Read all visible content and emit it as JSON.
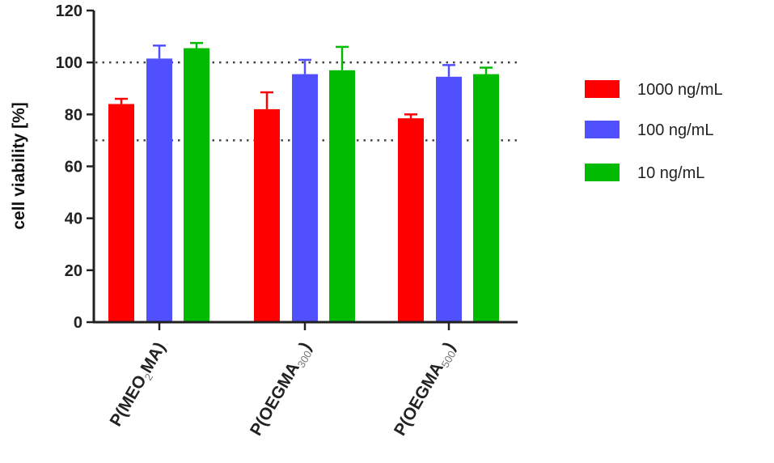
{
  "chart_data": {
    "type": "bar",
    "ylabel": "cell viability [%]",
    "ylim": [
      0,
      120
    ],
    "yticks": [
      0,
      20,
      40,
      60,
      80,
      100,
      120
    ],
    "reference_lines": [
      100,
      70
    ],
    "categories": [
      {
        "main": "P(MEO",
        "sub": "2",
        "tail": "MA)"
      },
      {
        "main": "P(OEGMA",
        "sub": "300",
        "tail": ")"
      },
      {
        "main": "P(OEGMA",
        "sub": "500",
        "tail": ")"
      }
    ],
    "series": [
      {
        "name": "1000 ng/mL",
        "color": "#ff0000",
        "values": [
          84,
          82,
          78.5
        ],
        "errors": [
          2,
          6.5,
          1.5
        ]
      },
      {
        "name": "100 ng/mL",
        "color": "#5050ff",
        "values": [
          101.5,
          95.5,
          94.5
        ],
        "errors": [
          5,
          5.5,
          4.5
        ]
      },
      {
        "name": "10 ng/mL",
        "color": "#00bb00",
        "values": [
          105.5,
          97,
          95.5
        ],
        "errors": [
          2,
          9,
          2.5
        ]
      }
    ],
    "legend_position": "right"
  }
}
